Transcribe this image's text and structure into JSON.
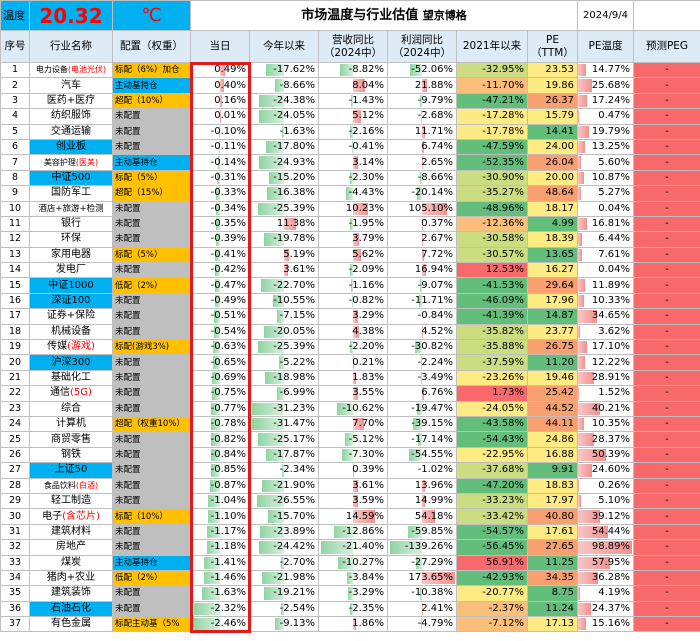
{
  "top": {
    "temp_label": "温度",
    "temp_value": "20.32",
    "temp_unit": "℃",
    "title": "市场温度与行业估值",
    "brand": "望京博格",
    "date": "2024/9/4"
  },
  "headers": [
    "序号",
    "行业名称",
    "配置（权重）",
    "当日",
    "今年以来",
    "营收同比（2024中）",
    "利润同比（2024中）",
    "2021年以来",
    "PE（TTM）",
    "PE温度",
    "预测PEG"
  ],
  "colors": {
    "blue": "#00b0f0",
    "orange": "#ffc000",
    "gray": "#bfbfbf",
    "header": "#ddebf7",
    "temp_bg": "#00b0f0",
    "red_text": "#ff0000"
  },
  "rows": [
    {
      "idx": "1",
      "name": "电力设备",
      "name_suffix": "(电池光伏)",
      "cfg": "标配（6%）加仓",
      "cfgc": "orange",
      "day": "0.49%",
      "ytd": "-17.62%",
      "rev": "-8.82%",
      "prof": "-52.06%",
      "s21": "-32.95%",
      "pe": "23.53",
      "pet": "14.77%",
      "peg": "-"
    },
    {
      "idx": "2",
      "name": "汽车",
      "name_suffix": "",
      "cfg": "主动基持仓",
      "cfgc": "blue",
      "day": "0.40%",
      "ytd": "-8.66%",
      "rev": "8.04%",
      "prof": "21.88%",
      "s21": "-11.70%",
      "pe": "19.86",
      "pet": "25.68%",
      "peg": "-"
    },
    {
      "idx": "3",
      "name": "医药+医疗",
      "name_suffix": "",
      "cfg": "超配（10%）",
      "cfgc": "orange",
      "day": "0.16%",
      "ytd": "-24.38%",
      "rev": "-1.43%",
      "prof": "-9.79%",
      "s21": "-47.21%",
      "pe": "26.37",
      "pet": "17.24%",
      "peg": "-"
    },
    {
      "idx": "4",
      "name": "纺织服饰",
      "name_suffix": "",
      "cfg": "未配置",
      "cfgc": "gray",
      "day": "0.01%",
      "ytd": "-24.05%",
      "rev": "5.12%",
      "prof": "-2.68%",
      "s21": "-17.28%",
      "pe": "15.79",
      "pet": "0.47%",
      "peg": "-"
    },
    {
      "idx": "5",
      "name": "交通运输",
      "name_suffix": "",
      "cfg": "未配置",
      "cfgc": "gray",
      "day": "-0.10%",
      "ytd": "-1.63%",
      "rev": "-2.16%",
      "prof": "11.71%",
      "s21": "-17.78%",
      "pe": "14.41",
      "pet": "19.79%",
      "peg": "-"
    },
    {
      "idx": "6",
      "name": "创业板",
      "name_suffix": "",
      "cfg": "未配置",
      "cfgc": "gray",
      "namec": "blue",
      "day": "-0.11%",
      "ytd": "-17.80%",
      "rev": "-0.41%",
      "prof": "6.74%",
      "s21": "-47.59%",
      "pe": "24.00",
      "pet": "13.25%",
      "peg": "-"
    },
    {
      "idx": "7",
      "name": "美容护理",
      "name_suffix": "(医美)",
      "cfg": "主动基持仓",
      "cfgc": "blue",
      "day": "-0.14%",
      "ytd": "-24.93%",
      "rev": "3.14%",
      "prof": "2.65%",
      "s21": "-52.35%",
      "pe": "26.04",
      "pet": "5.60%",
      "peg": "-"
    },
    {
      "idx": "8",
      "name": "中证500",
      "name_suffix": "",
      "cfg": "标配（5%）",
      "cfgc": "orange",
      "namec": "blue",
      "day": "-0.31%",
      "ytd": "-15.20%",
      "rev": "-2.30%",
      "prof": "-8.66%",
      "s21": "-30.90%",
      "pe": "20.00",
      "pet": "10.87%",
      "peg": "-"
    },
    {
      "idx": "9",
      "name": "国防军工",
      "name_suffix": "",
      "cfg": "超配（15%）",
      "cfgc": "orange",
      "day": "-0.33%",
      "ytd": "-16.38%",
      "rev": "-4.43%",
      "prof": "-20.14%",
      "s21": "-35.27%",
      "pe": "48.64",
      "pet": "5.27%",
      "peg": "-"
    },
    {
      "idx": "10",
      "name": "酒店+旅游+检测",
      "name_suffix": "",
      "cfg": "未配置",
      "cfgc": "gray",
      "day": "-0.34%",
      "ytd": "-25.39%",
      "rev": "10.23%",
      "prof": "105.10%",
      "s21": "-48.96%",
      "pe": "18.17",
      "pet": "0.04%",
      "peg": "-"
    },
    {
      "idx": "11",
      "name": "银行",
      "name_suffix": "",
      "cfg": "未配置",
      "cfgc": "gray",
      "day": "-0.35%",
      "ytd": "11.38%",
      "rev": "-1.95%",
      "prof": "0.37%",
      "s21": "-12.36%",
      "pe": "4.99",
      "pet": "16.81%",
      "peg": "-"
    },
    {
      "idx": "12",
      "name": "环保",
      "name_suffix": "",
      "cfg": "未配置",
      "cfgc": "gray",
      "day": "-0.39%",
      "ytd": "-19.78%",
      "rev": "3.79%",
      "prof": "2.67%",
      "s21": "-30.58%",
      "pe": "18.39",
      "pet": "6.44%",
      "peg": "-"
    },
    {
      "idx": "13",
      "name": "家用电器",
      "name_suffix": "",
      "cfg": "标配（5%）",
      "cfgc": "orange",
      "day": "-0.41%",
      "ytd": "5.19%",
      "rev": "5.62%",
      "prof": "7.72%",
      "s21": "-30.57%",
      "pe": "13.65",
      "pet": "7.61%",
      "peg": "-"
    },
    {
      "idx": "14",
      "name": "发电厂",
      "name_suffix": "",
      "cfg": "未配置",
      "cfgc": "gray",
      "day": "-0.42%",
      "ytd": "3.61%",
      "rev": "-2.09%",
      "prof": "16.94%",
      "s21": "12.53%",
      "pe": "16.27",
      "pet": "0.04%",
      "peg": "-"
    },
    {
      "idx": "15",
      "name": "中证1000",
      "name_suffix": "",
      "cfg": "低配（2%）",
      "cfgc": "orange",
      "namec": "blue",
      "day": "-0.47%",
      "ytd": "-22.70%",
      "rev": "-1.16%",
      "prof": "-9.07%",
      "s21": "-41.53%",
      "pe": "29.64",
      "pet": "11.89%",
      "peg": "-"
    },
    {
      "idx": "16",
      "name": "深证100",
      "name_suffix": "",
      "cfg": "未配置",
      "cfgc": "gray",
      "namec": "blue",
      "day": "-0.49%",
      "ytd": "-10.55%",
      "rev": "-0.82%",
      "prof": "-11.71%",
      "s21": "-46.09%",
      "pe": "17.96",
      "pet": "10.33%",
      "peg": "-"
    },
    {
      "idx": "17",
      "name": "证券+保险",
      "name_suffix": "",
      "cfg": "未配置",
      "cfgc": "gray",
      "day": "-0.51%",
      "ytd": "-7.15%",
      "rev": "3.29%",
      "prof": "-0.84%",
      "s21": "-41.39%",
      "pe": "14.87",
      "pet": "34.65%",
      "peg": "-"
    },
    {
      "idx": "18",
      "name": "机械设备",
      "name_suffix": "",
      "cfg": "未配置",
      "cfgc": "gray",
      "day": "-0.54%",
      "ytd": "-20.05%",
      "rev": "4.38%",
      "prof": "4.52%",
      "s21": "-35.82%",
      "pe": "23.77",
      "pet": "3.62%",
      "peg": "-"
    },
    {
      "idx": "19",
      "name": "传媒",
      "name_suffix": "(游戏)",
      "cfg": "标配(游戏3%)",
      "cfgc": "orange",
      "day": "-0.63%",
      "ytd": "-25.39%",
      "rev": "-2.20%",
      "prof": "-30.82%",
      "s21": "-35.88%",
      "pe": "26.75",
      "pet": "17.10%",
      "peg": "-"
    },
    {
      "idx": "20",
      "name": "沪深300",
      "name_suffix": "",
      "cfg": "未配置",
      "cfgc": "gray",
      "namec": "blue",
      "day": "-0.65%",
      "ytd": "-5.22%",
      "rev": "0.21%",
      "prof": "-2.24%",
      "s21": "-37.59%",
      "pe": "11.20",
      "pet": "12.22%",
      "peg": "-"
    },
    {
      "idx": "21",
      "name": "基础化工",
      "name_suffix": "",
      "cfg": "未配置",
      "cfgc": "gray",
      "day": "-0.69%",
      "ytd": "-18.98%",
      "rev": "1.83%",
      "prof": "-3.49%",
      "s21": "-23.26%",
      "pe": "19.46",
      "pet": "28.91%",
      "peg": "-"
    },
    {
      "idx": "22",
      "name": "通信",
      "name_suffix": "(5G)",
      "cfg": "未配置",
      "cfgc": "gray",
      "day": "-0.75%",
      "ytd": "-6.99%",
      "rev": "3.55%",
      "prof": "6.76%",
      "s21": "1.73%",
      "pe": "25.42",
      "pet": "1.52%",
      "peg": "-"
    },
    {
      "idx": "23",
      "name": "综合",
      "name_suffix": "",
      "cfg": "未配置",
      "cfgc": "gray",
      "day": "-0.77%",
      "ytd": "-31.23%",
      "rev": "-10.62%",
      "prof": "-19.47%",
      "s21": "-24.05%",
      "pe": "44.52",
      "pet": "40.21%",
      "peg": "-"
    },
    {
      "idx": "24",
      "name": "计算机",
      "name_suffix": "",
      "cfg": "超配（权重10%）",
      "cfgc": "orange",
      "day": "-0.78%",
      "ytd": "-31.47%",
      "rev": "7.70%",
      "prof": "-39.15%",
      "s21": "-43.58%",
      "pe": "44.11",
      "pet": "10.35%",
      "peg": "-"
    },
    {
      "idx": "25",
      "name": "商贸零售",
      "name_suffix": "",
      "cfg": "未配置",
      "cfgc": "gray",
      "day": "-0.82%",
      "ytd": "-25.17%",
      "rev": "-5.12%",
      "prof": "-17.14%",
      "s21": "-54.43%",
      "pe": "24.86",
      "pet": "28.37%",
      "peg": "-"
    },
    {
      "idx": "26",
      "name": "钢铁",
      "name_suffix": "",
      "cfg": "未配置",
      "cfgc": "gray",
      "day": "-0.84%",
      "ytd": "-17.87%",
      "rev": "-7.30%",
      "prof": "-54.55%",
      "s21": "-22.95%",
      "pe": "16.88",
      "pet": "50.39%",
      "peg": "-"
    },
    {
      "idx": "27",
      "name": "上证50",
      "name_suffix": "",
      "cfg": "未配置",
      "cfgc": "gray",
      "namec": "blue",
      "day": "-0.85%",
      "ytd": "-2.34%",
      "rev": "0.39%",
      "prof": "-1.02%",
      "s21": "-37.68%",
      "pe": "9.91",
      "pet": "24.60%",
      "peg": "-"
    },
    {
      "idx": "28",
      "name": "食品饮料",
      "name_suffix": "(白酒)",
      "cfg": "未配置",
      "cfgc": "gray",
      "day": "-0.87%",
      "ytd": "-21.90%",
      "rev": "3.61%",
      "prof": "13.96%",
      "s21": "-47.20%",
      "pe": "18.83",
      "pet": "0.26%",
      "peg": "-"
    },
    {
      "idx": "29",
      "name": "轻工制造",
      "name_suffix": "",
      "cfg": "未配置",
      "cfgc": "gray",
      "day": "-1.04%",
      "ytd": "-26.55%",
      "rev": "3.59%",
      "prof": "14.99%",
      "s21": "-33.23%",
      "pe": "17.97",
      "pet": "5.10%",
      "peg": "-"
    },
    {
      "idx": "30",
      "name": "电子",
      "name_suffix": "(含芯片)",
      "cfg": "标配（10%）",
      "cfgc": "orange",
      "day": "-1.10%",
      "ytd": "-15.70%",
      "rev": "14.59%",
      "prof": "54.18%",
      "s21": "-33.42%",
      "pe": "40.80",
      "pet": "39.12%",
      "peg": "-"
    },
    {
      "idx": "31",
      "name": "建筑材料",
      "name_suffix": "",
      "cfg": "未配置",
      "cfgc": "gray",
      "day": "-1.17%",
      "ytd": "-23.89%",
      "rev": "-12.86%",
      "prof": "-59.85%",
      "s21": "-54.57%",
      "pe": "17.61",
      "pet": "54.44%",
      "peg": "-"
    },
    {
      "idx": "32",
      "name": "房地产",
      "name_suffix": "",
      "cfg": "未配置",
      "cfgc": "gray",
      "day": "-1.18%",
      "ytd": "-24.42%",
      "rev": "-21.40%",
      "prof": "-139.26%",
      "s21": "-56.45%",
      "pe": "27.65",
      "pet": "98.89%",
      "peg": "-"
    },
    {
      "idx": "33",
      "name": "煤炭",
      "name_suffix": "",
      "cfg": "主动基持仓",
      "cfgc": "blue",
      "day": "-1.41%",
      "ytd": "-2.70%",
      "rev": "-10.27%",
      "prof": "-27.29%",
      "s21": "56.91%",
      "pe": "11.25",
      "pet": "57.95%",
      "peg": "-"
    },
    {
      "idx": "34",
      "name": "猪肉+农业",
      "name_suffix": "",
      "cfg": "低配（2%）",
      "cfgc": "orange",
      "day": "-1.46%",
      "ytd": "-21.98%",
      "rev": "-3.84%",
      "prof": "173.65%",
      "s21": "-42.93%",
      "pe": "34.35",
      "pet": "36.28%",
      "peg": "-"
    },
    {
      "idx": "35",
      "name": "建筑装饰",
      "name_suffix": "",
      "cfg": "未配置",
      "cfgc": "gray",
      "day": "-1.63%",
      "ytd": "-19.21%",
      "rev": "-3.29%",
      "prof": "-10.38%",
      "s21": "-20.77%",
      "pe": "8.75",
      "pet": "4.19%",
      "peg": "-"
    },
    {
      "idx": "36",
      "name": "石油石化",
      "name_suffix": "",
      "cfg": "未配置",
      "cfgc": "gray",
      "namec": "blue",
      "day": "-2.32%",
      "ytd": "-2.54%",
      "rev": "-2.35%",
      "prof": "2.41%",
      "s21": "-2.37%",
      "pe": "11.24",
      "pet": "24.37%",
      "peg": "-"
    },
    {
      "idx": "37",
      "name": "有色金属",
      "name_suffix": "",
      "cfg": "标配主动基（5%",
      "cfgc": "orange",
      "day": "-2.46%",
      "ytd": "-9.13%",
      "rev": "1.86%",
      "prof": "-4.79%",
      "s21": "-7.12%",
      "pe": "17.13",
      "pet": "15.16%",
      "peg": "-"
    }
  ]
}
